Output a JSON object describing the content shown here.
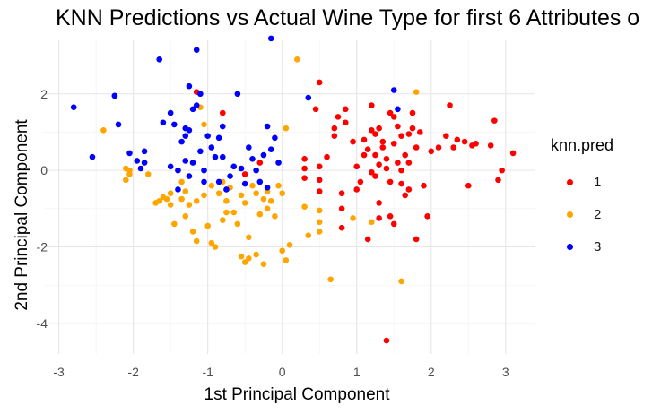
{
  "chart_data": {
    "type": "scatter",
    "title": "KNN Predictions vs Actual Wine Type for first 6 Attributes o",
    "xlabel": "1st Principal Component",
    "ylabel": "2nd Principal Component",
    "xlim": [
      -3.2,
      3.4
    ],
    "ylim": [
      -4.8,
      3.4
    ],
    "xticks": [
      -3,
      -2,
      -1,
      0,
      1,
      2,
      3
    ],
    "yticks": [
      -4,
      -2,
      0,
      2
    ],
    "grid": true,
    "legend": {
      "title": "knn.pred",
      "position": "right"
    },
    "series": [
      {
        "name": "1",
        "color": "#FF0000",
        "points": [
          [
            -1.15,
            2.05
          ],
          [
            -0.8,
            1.5
          ],
          [
            -0.5,
            -0.1
          ],
          [
            -0.3,
            0.2
          ],
          [
            0.3,
            0.3
          ],
          [
            0.3,
            0.05
          ],
          [
            0.3,
            -0.2
          ],
          [
            0.5,
            0.1
          ],
          [
            0.5,
            -0.25
          ],
          [
            0.5,
            -0.55
          ],
          [
            0.45,
            1.6
          ],
          [
            0.5,
            2.3
          ],
          [
            0.6,
            0.35
          ],
          [
            0.7,
            0.9
          ],
          [
            0.7,
            1.1
          ],
          [
            0.75,
            1.4
          ],
          [
            0.85,
            1.6
          ],
          [
            0.8,
            -0.6
          ],
          [
            0.8,
            -1.0
          ],
          [
            0.8,
            -1.5
          ],
          [
            0.95,
            0.75
          ],
          [
            1.0,
            -0.5
          ],
          [
            1.1,
            0.8
          ],
          [
            1.2,
            1.05
          ],
          [
            1.25,
            0.4
          ],
          [
            1.25,
            -0.15
          ],
          [
            1.3,
            0.15
          ],
          [
            1.3,
            -1.25
          ],
          [
            1.35,
            0.6
          ],
          [
            1.4,
            0.3
          ],
          [
            1.45,
            1.5
          ],
          [
            1.5,
            0.7
          ],
          [
            1.55,
            1.15
          ],
          [
            1.6,
            0.9
          ],
          [
            1.65,
            0.4
          ],
          [
            1.7,
            0.2
          ],
          [
            1.7,
            -0.5
          ],
          [
            1.75,
            1.5
          ],
          [
            1.75,
            1.1
          ],
          [
            1.8,
            0.6
          ],
          [
            1.85,
            1.0
          ],
          [
            1.9,
            -0.4
          ],
          [
            1.95,
            -1.2
          ],
          [
            2.0,
            0.5
          ],
          [
            2.1,
            0.6
          ],
          [
            2.2,
            0.9
          ],
          [
            2.25,
            1.7
          ],
          [
            2.3,
            0.6
          ],
          [
            2.35,
            0.8
          ],
          [
            2.45,
            0.75
          ],
          [
            2.5,
            -0.4
          ],
          [
            2.55,
            0.65
          ],
          [
            2.6,
            0.7
          ],
          [
            2.8,
            0.65
          ],
          [
            2.85,
            1.3
          ],
          [
            2.9,
            -0.25
          ],
          [
            2.95,
            0.0
          ],
          [
            3.1,
            0.45
          ],
          [
            1.2,
            1.7
          ],
          [
            1.45,
            -0.3
          ],
          [
            1.6,
            -0.35
          ],
          [
            1.65,
            -0.65
          ],
          [
            1.8,
            -1.8
          ],
          [
            1.0,
            0.1
          ],
          [
            1.05,
            -0.3
          ],
          [
            1.15,
            -1.8
          ],
          [
            1.3,
            -0.85
          ],
          [
            1.45,
            -1.2
          ],
          [
            1.5,
            -1.4
          ],
          [
            1.4,
            -4.45
          ],
          [
            1.3,
            1.1
          ],
          [
            1.1,
            0.4
          ],
          [
            1.25,
            0.95
          ],
          [
            1.35,
            0.75
          ],
          [
            1.55,
            0.2
          ],
          [
            0.85,
            1.25
          ],
          [
            1.15,
            0.55
          ],
          [
            1.5,
            1.4
          ],
          [
            1.7,
            0.95
          ],
          [
            1.2,
            -0.05
          ],
          [
            1.4,
            0.05
          ],
          [
            1.6,
            0.0
          ]
        ]
      },
      {
        "name": "2",
        "color": "#FFA500",
        "points": [
          [
            -2.4,
            1.05
          ],
          [
            -2.1,
            0.05
          ],
          [
            -2.05,
            -0.1
          ],
          [
            -2.1,
            -0.25
          ],
          [
            -1.8,
            -0.1
          ],
          [
            -1.7,
            -0.85
          ],
          [
            -1.65,
            -0.8
          ],
          [
            -1.6,
            -0.7
          ],
          [
            -1.55,
            -0.75
          ],
          [
            -1.5,
            -0.6
          ],
          [
            -1.5,
            -0.9
          ],
          [
            -1.45,
            -1.4
          ],
          [
            -1.35,
            -0.75
          ],
          [
            -1.35,
            -0.3
          ],
          [
            -1.3,
            -0.55
          ],
          [
            -1.3,
            -1.2
          ],
          [
            -1.25,
            -0.9
          ],
          [
            -1.2,
            -1.6
          ],
          [
            -1.15,
            -0.8
          ],
          [
            -1.1,
            1.65
          ],
          [
            -1.05,
            -0.65
          ],
          [
            -1.05,
            1.2
          ],
          [
            -1.0,
            -1.45
          ],
          [
            -0.95,
            -0.4
          ],
          [
            -0.95,
            -1.9
          ],
          [
            -0.9,
            -2.0
          ],
          [
            -0.85,
            -0.6
          ],
          [
            -0.8,
            -1.3
          ],
          [
            -0.75,
            -0.8
          ],
          [
            -0.7,
            -0.45
          ],
          [
            -0.65,
            -1.1
          ],
          [
            -0.6,
            -1.4
          ],
          [
            -0.55,
            -0.65
          ],
          [
            -0.5,
            -0.85
          ],
          [
            -0.45,
            -1.75
          ],
          [
            -0.4,
            -0.4
          ],
          [
            -0.35,
            -0.6
          ],
          [
            -0.3,
            -1.15
          ],
          [
            -0.25,
            -0.75
          ],
          [
            -0.2,
            -1.0
          ],
          [
            -0.15,
            -0.8
          ],
          [
            -0.1,
            -1.2
          ],
          [
            -0.05,
            -0.4
          ],
          [
            0.0,
            -0.6
          ],
          [
            0.0,
            -2.1
          ],
          [
            0.05,
            -2.35
          ],
          [
            0.05,
            1.1
          ],
          [
            -0.55,
            -2.25
          ],
          [
            -0.5,
            -2.4
          ],
          [
            -0.45,
            -2.3
          ],
          [
            -0.35,
            -2.2
          ],
          [
            -0.25,
            -2.45
          ],
          [
            0.1,
            -1.95
          ],
          [
            0.2,
            2.9
          ],
          [
            0.3,
            -0.95
          ],
          [
            0.35,
            -1.7
          ],
          [
            0.5,
            -1.05
          ],
          [
            0.5,
            -1.35
          ],
          [
            0.5,
            -1.6
          ],
          [
            0.65,
            -2.85
          ],
          [
            0.95,
            -1.25
          ],
          [
            1.2,
            -1.35
          ],
          [
            1.6,
            -2.9
          ],
          [
            1.8,
            2.05
          ],
          [
            -2.05,
            0.0
          ],
          [
            -0.8,
            -0.3
          ],
          [
            -1.15,
            -1.85
          ],
          [
            -0.75,
            -1.1
          ],
          [
            -0.2,
            -0.55
          ]
        ]
      },
      {
        "name": "3",
        "color": "#0000FF",
        "points": [
          [
            -2.8,
            1.65
          ],
          [
            -2.55,
            0.35
          ],
          [
            -2.25,
            1.95
          ],
          [
            -2.2,
            1.2
          ],
          [
            -2.05,
            0.45
          ],
          [
            -1.95,
            0.25
          ],
          [
            -1.9,
            0.05
          ],
          [
            -1.85,
            0.5
          ],
          [
            -1.85,
            0.2
          ],
          [
            -1.65,
            2.9
          ],
          [
            -1.6,
            1.25
          ],
          [
            -1.5,
            1.5
          ],
          [
            -1.5,
            0.1
          ],
          [
            -1.45,
            1.2
          ],
          [
            -1.4,
            -0.5
          ],
          [
            -1.35,
            0.75
          ],
          [
            -1.3,
            0.9
          ],
          [
            -1.3,
            1.1
          ],
          [
            -1.3,
            0.25
          ],
          [
            -1.25,
            2.2
          ],
          [
            -1.25,
            -0.15
          ],
          [
            -1.2,
            1.6
          ],
          [
            -1.2,
            0.2
          ],
          [
            -1.15,
            1.7
          ],
          [
            -1.15,
            3.15
          ],
          [
            -1.1,
            2.0
          ],
          [
            -1.1,
            0.5
          ],
          [
            -1.05,
            0.0
          ],
          [
            -1.05,
            -0.3
          ],
          [
            -1.0,
            0.9
          ],
          [
            -0.95,
            0.6
          ],
          [
            -0.9,
            0.35
          ],
          [
            -0.85,
            -0.3
          ],
          [
            -0.8,
            1.15
          ],
          [
            -0.8,
            0.35
          ],
          [
            -0.75,
            -0.5
          ],
          [
            -0.7,
            -0.15
          ],
          [
            -0.65,
            0.1
          ],
          [
            -0.6,
            2.0
          ],
          [
            -0.55,
            0.05
          ],
          [
            -0.5,
            -0.35
          ],
          [
            -0.45,
            0.6
          ],
          [
            -0.4,
            0.3
          ],
          [
            -0.35,
            0.0
          ],
          [
            -0.3,
            -0.3
          ],
          [
            -0.25,
            0.4
          ],
          [
            -0.2,
            1.15
          ],
          [
            -0.15,
            0.55
          ],
          [
            -0.15,
            3.45
          ],
          [
            -0.1,
            0.85
          ],
          [
            -0.05,
            0.2
          ],
          [
            0.35,
            1.9
          ],
          [
            1.5,
            2.1
          ],
          [
            1.55,
            1.6
          ],
          [
            -2.25,
            1.95
          ],
          [
            -1.25,
            1.05
          ],
          [
            -0.2,
            -0.45
          ],
          [
            -1.4,
            0.0
          ],
          [
            -0.85,
            0.85
          ]
        ]
      }
    ]
  }
}
